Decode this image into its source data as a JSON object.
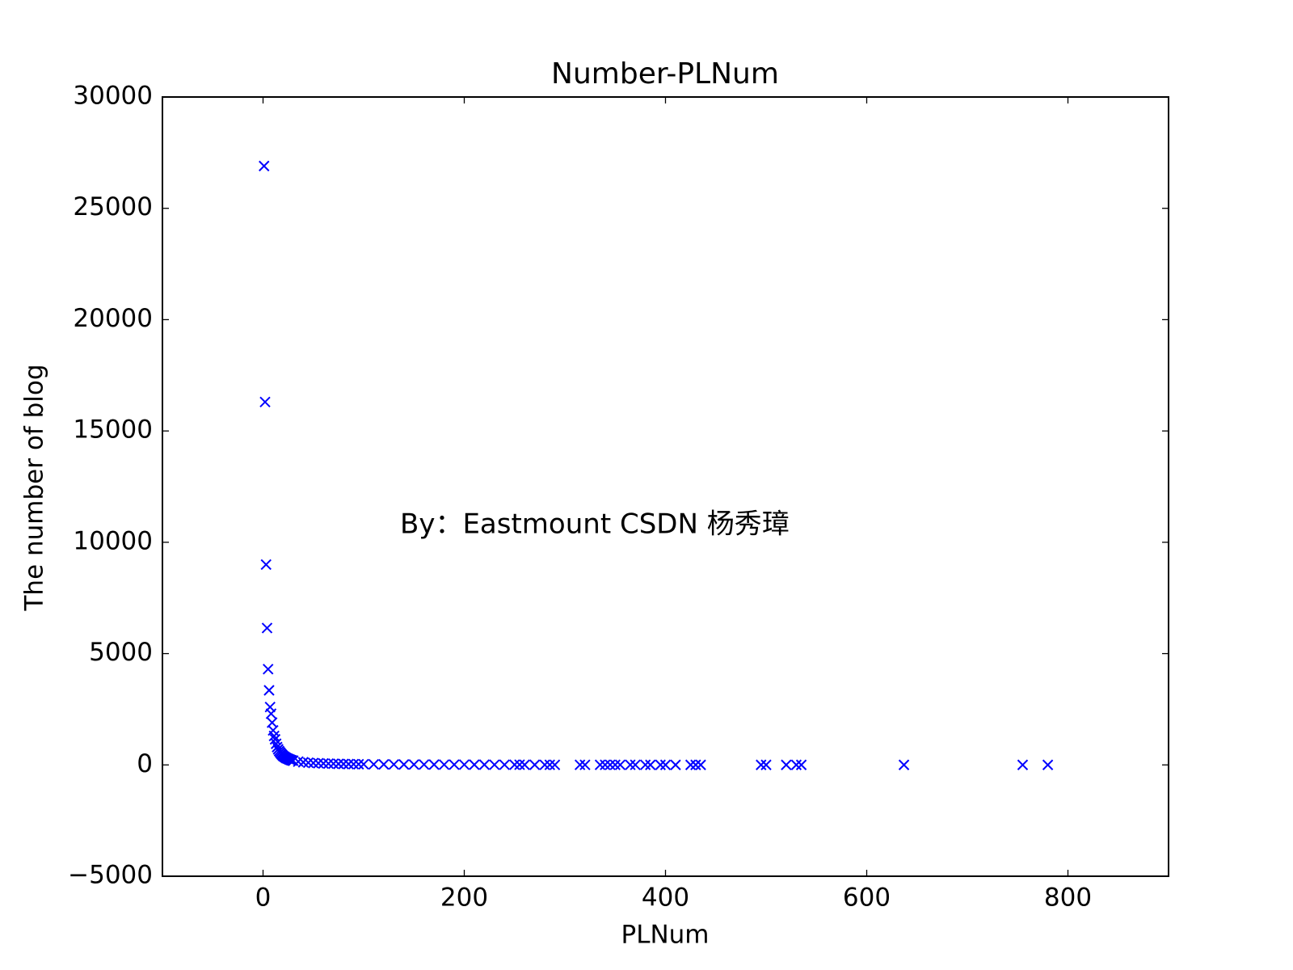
{
  "chart_data": {
    "type": "scatter",
    "title": "Number-PLNum",
    "xlabel": "PLNum",
    "ylabel": "The number of blog",
    "annotation": "By：Eastmount CSDN 杨秀璋",
    "annotation_color": "#ee1111",
    "marker": "x",
    "color": "#0000ff",
    "x": [
      1,
      2,
      3,
      4,
      5,
      6,
      7,
      8,
      9,
      10,
      11,
      12,
      13,
      14,
      15,
      16,
      17,
      18,
      19,
      20,
      21,
      22,
      23,
      24,
      25,
      26,
      27,
      28,
      29,
      30,
      35,
      40,
      45,
      50,
      55,
      60,
      65,
      70,
      75,
      80,
      85,
      90,
      95,
      100,
      110,
      120,
      130,
      140,
      150,
      160,
      170,
      180,
      190,
      200,
      210,
      220,
      230,
      240,
      250,
      255,
      260,
      270,
      280,
      285,
      290,
      315,
      320,
      335,
      340,
      345,
      350,
      355,
      365,
      370,
      380,
      385,
      395,
      400,
      410,
      425,
      430,
      435,
      495,
      500,
      520,
      530,
      535,
      637,
      755,
      780
    ],
    "y": [
      26900,
      16300,
      9000,
      6150,
      4300,
      3350,
      2600,
      2300,
      1900,
      1550,
      1300,
      1150,
      950,
      800,
      700,
      620,
      560,
      500,
      450,
      400,
      370,
      340,
      310,
      290,
      270,
      250,
      230,
      210,
      200,
      190,
      150,
      120,
      100,
      85,
      75,
      65,
      58,
      52,
      47,
      42,
      38,
      35,
      32,
      30,
      26,
      24,
      22,
      20,
      18,
      16,
      15,
      14,
      13,
      12,
      11,
      10,
      9,
      8,
      7,
      7,
      6,
      6,
      5,
      5,
      5,
      4,
      4,
      4,
      4,
      3,
      3,
      3,
      3,
      3,
      3,
      2,
      2,
      2,
      2,
      2,
      2,
      2,
      1,
      1,
      1,
      1,
      1,
      1,
      1,
      1
    ],
    "xlim": [
      -100,
      900
    ],
    "xticks": [
      0,
      200,
      400,
      600,
      800
    ],
    "ylim": [
      -5000,
      30000
    ],
    "yticks": [
      {
        "value": -5000,
        "label": "−5000"
      },
      0,
      5000,
      10000,
      15000,
      20000,
      25000,
      30000
    ],
    "grid": false
  }
}
